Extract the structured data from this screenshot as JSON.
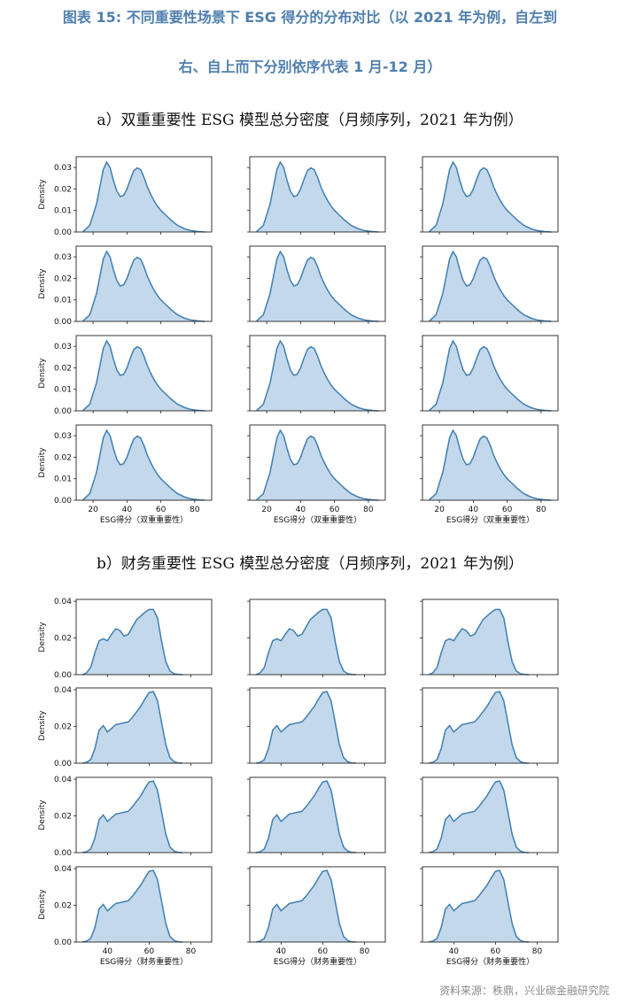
{
  "figure": {
    "title_line1": "图表 15: 不同重要性场景下 ESG 得分的分布对比（以 2021 年为例，自左到",
    "title_line2": "右、自上而下分别依序代表 1 月-12 月）"
  },
  "source": "资料来源：秩鼎，兴业碳金融研究院",
  "colors": {
    "fill": "#c3d8eb",
    "line": "#3f7fb1",
    "title": "#4f7fae"
  },
  "chart_data": [
    {
      "type": "area",
      "section_title": "a）双重重要性 ESG 模型总分密度（月频序列，2021 年为例）",
      "panel_count": 12,
      "layout": "4 rows x 3 columns",
      "xlabel": "ESG得分（双重重要性）",
      "ylabel": "Density",
      "xlim": [
        10,
        90
      ],
      "ylim": [
        0,
        0.035
      ],
      "xticks": [
        20,
        40,
        60,
        80
      ],
      "yticks": [
        0.0,
        0.01,
        0.02,
        0.03
      ],
      "ytick_labels": [
        "0.00",
        "0.01",
        "0.02",
        "0.03"
      ],
      "curve": {
        "x": [
          14,
          18,
          22,
          24,
          26,
          28,
          30,
          32,
          34,
          36,
          38,
          40,
          42,
          44,
          46,
          48,
          50,
          52,
          54,
          56,
          58,
          60,
          62,
          64,
          66,
          68,
          70,
          74,
          78,
          82,
          86
        ],
        "y": [
          0.0002,
          0.003,
          0.013,
          0.021,
          0.029,
          0.0325,
          0.03,
          0.024,
          0.019,
          0.0165,
          0.017,
          0.02,
          0.0245,
          0.0285,
          0.0298,
          0.029,
          0.0255,
          0.021,
          0.0175,
          0.0145,
          0.012,
          0.01,
          0.0085,
          0.007,
          0.0055,
          0.0042,
          0.003,
          0.0015,
          0.0006,
          0.0002,
          0.0
        ]
      }
    },
    {
      "type": "area",
      "section_title": "b）财务重要性 ESG 模型总分密度（月频序列，2021 年为例）",
      "panel_count": 12,
      "layout": "4 rows x 3 columns",
      "xlabel": "ESG得分（财务重要性）",
      "ylabel": "Density",
      "xlim": [
        25,
        90
      ],
      "ylim": [
        0,
        0.041
      ],
      "xticks": [
        40,
        60,
        80
      ],
      "yticks": [
        0.0,
        0.02,
        0.04
      ],
      "ytick_labels": [
        "0.00",
        "0.02",
        "0.04"
      ],
      "curves": [
        {
          "rows": [
            0
          ],
          "x": [
            28,
            30,
            32,
            34,
            36,
            38,
            40,
            42,
            44,
            46,
            48,
            50,
            52,
            54,
            56,
            58,
            60,
            62,
            64,
            66,
            68,
            70,
            72,
            74,
            76
          ],
          "y": [
            0.0,
            0.001,
            0.004,
            0.012,
            0.0185,
            0.0195,
            0.0185,
            0.022,
            0.025,
            0.024,
            0.021,
            0.022,
            0.026,
            0.03,
            0.032,
            0.034,
            0.0355,
            0.0355,
            0.031,
            0.018,
            0.007,
            0.002,
            0.0005,
            0.0001,
            0.0
          ]
        },
        {
          "rows": [
            1,
            2,
            3
          ],
          "x": [
            28,
            30,
            32,
            34,
            36,
            38,
            40,
            42,
            44,
            46,
            48,
            50,
            52,
            54,
            56,
            58,
            60,
            62,
            64,
            66,
            68,
            70,
            72,
            74,
            76
          ],
          "y": [
            0.0,
            0.0005,
            0.002,
            0.008,
            0.018,
            0.0205,
            0.017,
            0.019,
            0.021,
            0.0215,
            0.022,
            0.0225,
            0.025,
            0.028,
            0.031,
            0.035,
            0.0385,
            0.039,
            0.034,
            0.022,
            0.01,
            0.003,
            0.0008,
            0.0001,
            0.0
          ]
        }
      ]
    }
  ]
}
